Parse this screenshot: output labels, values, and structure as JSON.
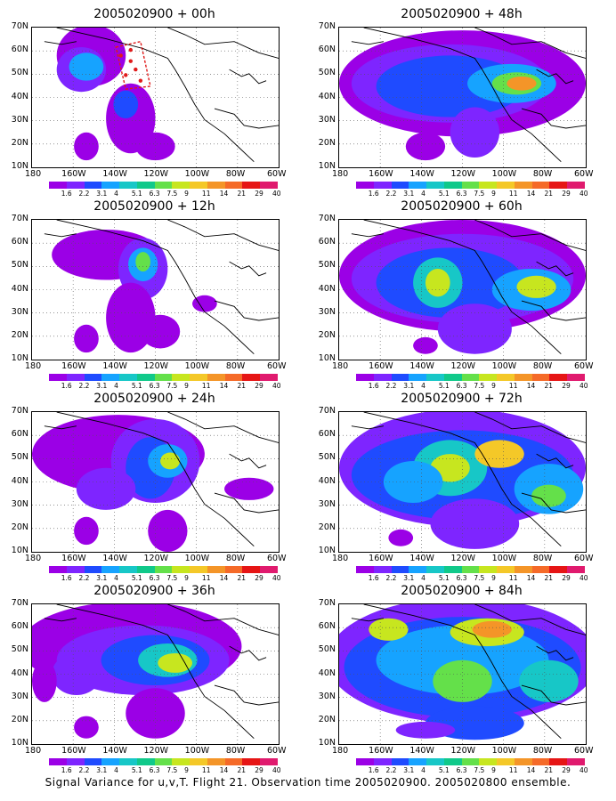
{
  "caption": "Signal Variance for u,v,T. Flight 21. Observation time 2005020900. 2005020800 ensemble.",
  "lat_labels": [
    "70N",
    "60N",
    "50N",
    "40N",
    "30N",
    "20N",
    "10N"
  ],
  "lon_labels": [
    "180",
    "160W",
    "140W",
    "120W",
    "100W",
    "80W",
    "60W"
  ],
  "colorbar": {
    "labels": [
      "1.6",
      "2.2",
      "3.1",
      "4",
      "5.1",
      "6.3",
      "7.5",
      "9",
      "11",
      "14",
      "21",
      "29",
      "40"
    ],
    "colors": [
      "#9b00e6",
      "#7e25ff",
      "#1f4bff",
      "#16a3ff",
      "#17c7c7",
      "#10c98a",
      "#64e04a",
      "#c7e61f",
      "#f4c828",
      "#f49528",
      "#f56a28",
      "#e61515",
      "#e01a6e"
    ]
  },
  "panels": [
    {
      "title": "2005020900 + 00h",
      "lead": "00h"
    },
    {
      "title": "2005020900 + 12h",
      "lead": "12h"
    },
    {
      "title": "2005020900 + 24h",
      "lead": "24h"
    },
    {
      "title": "2005020900 + 36h",
      "lead": "36h"
    },
    {
      "title": "2005020900 + 48h",
      "lead": "48h"
    },
    {
      "title": "2005020900 + 60h",
      "lead": "60h"
    },
    {
      "title": "2005020900 + 72h",
      "lead": "72h"
    },
    {
      "title": "2005020900 + 84h",
      "lead": "84h"
    }
  ]
}
